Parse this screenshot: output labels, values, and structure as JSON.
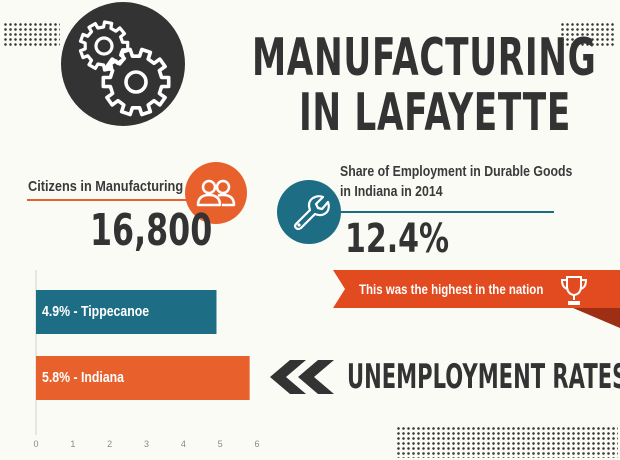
{
  "header": {
    "title_line1": "MANUFACTURING",
    "title_line2": "IN LAFAYETTE"
  },
  "icons": {
    "gears": "gears-icon",
    "people": "people-icon",
    "wrench": "wrench-icon",
    "trophy": "trophy-icon",
    "chevrons": "double-chevron-left-icon"
  },
  "colors": {
    "dark": "#333333",
    "orange": "#e8612c",
    "teal": "#1d6e85",
    "red_banner": "#e24a1f"
  },
  "stats": {
    "citizens_label": "Citizens in Manufacturing",
    "citizens_value": "16,800",
    "share_label_line1": "Share of Employment in Durable Goods",
    "share_label_line2": "in Indiana in 2014",
    "share_value": "12.4%",
    "banner_text": "This was the highest in the nation"
  },
  "unemployment": {
    "heading": "UNEMPLOYMENT RATES"
  },
  "chart_data": {
    "type": "bar",
    "orientation": "horizontal",
    "categories": [
      "Tippecanoe",
      "Indiana"
    ],
    "values": [
      4.9,
      5.8
    ],
    "bar_labels": [
      "4.9% - Tippecanoe",
      "5.8% - Indiana"
    ],
    "bar_colors": [
      "#1d6e85",
      "#e8612c"
    ],
    "xlim": [
      0,
      6
    ],
    "xticks": [
      "0",
      "1",
      "2",
      "3",
      "4",
      "5",
      "6"
    ],
    "title": "UNEMPLOYMENT RATES"
  }
}
